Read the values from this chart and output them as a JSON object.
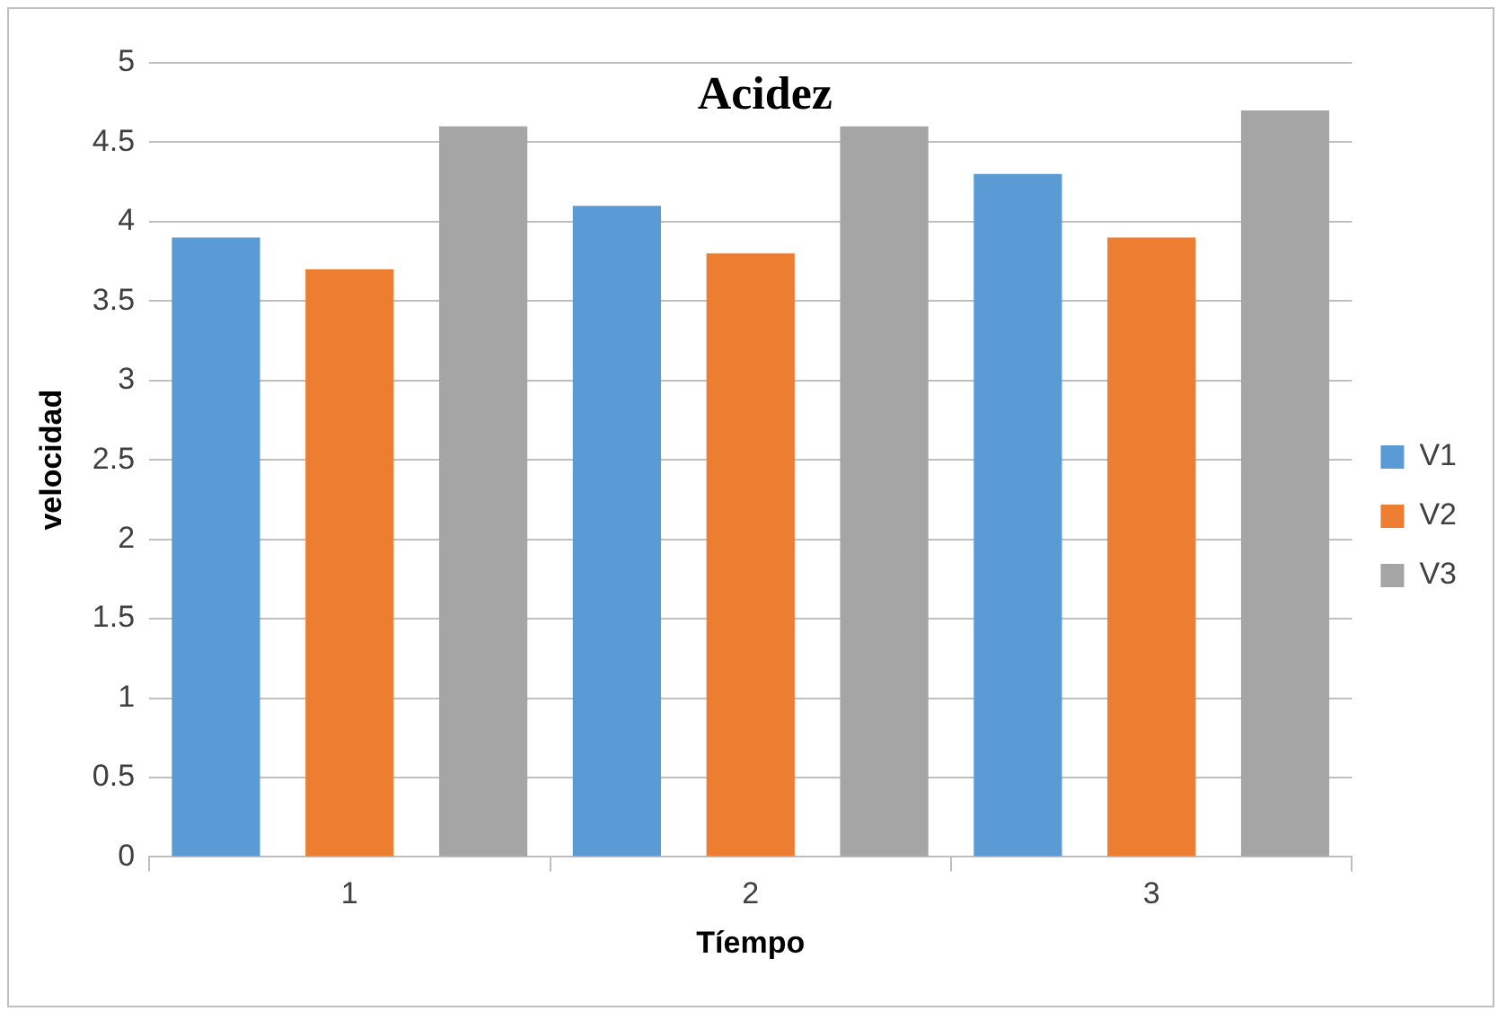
{
  "chart_data": {
    "type": "bar",
    "title": "Acidez",
    "xlabel": "Tíempo",
    "ylabel": "velocidad",
    "categories": [
      "1",
      "2",
      "3"
    ],
    "series": [
      {
        "name": "V1",
        "color": "#5b9bd5",
        "values": [
          3.9,
          4.1,
          4.3
        ]
      },
      {
        "name": "V2",
        "color": "#ed7d31",
        "values": [
          3.7,
          3.8,
          3.9
        ]
      },
      {
        "name": "V3",
        "color": "#a5a5a5",
        "values": [
          4.6,
          4.6,
          4.7
        ]
      }
    ],
    "ylim": [
      0,
      5
    ],
    "yticks": [
      0,
      0.5,
      1,
      1.5,
      2,
      2.5,
      3,
      3.5,
      4,
      4.5,
      5
    ],
    "grid": "y",
    "legend": "right"
  }
}
